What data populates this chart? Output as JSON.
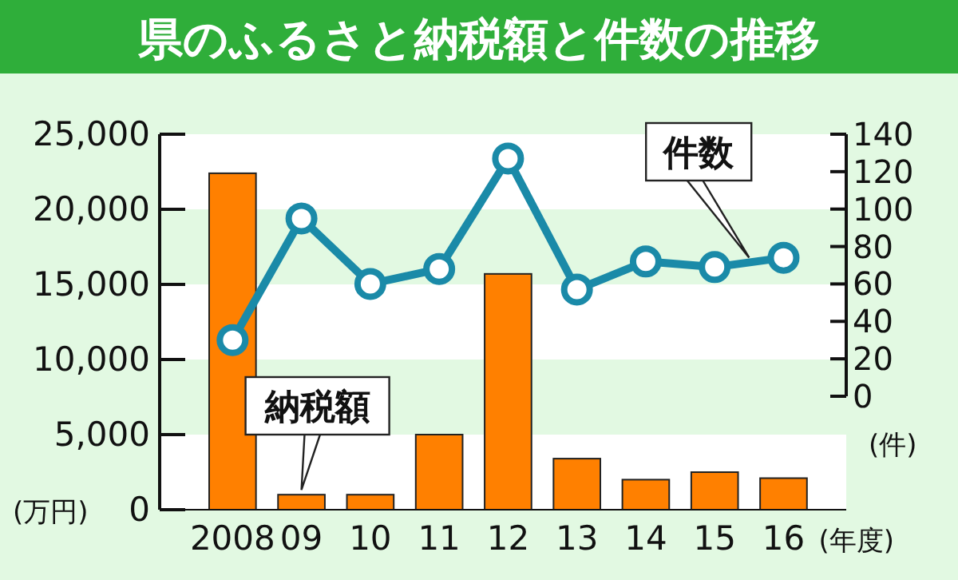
{
  "chart_data": {
    "type": "bar",
    "title": "県のふるさと納税額と件数の推移",
    "xlabel": "(年度)",
    "ylabel": "(万円)",
    "y2label": "(件)",
    "categories": [
      "2008",
      "09",
      "10",
      "11",
      "12",
      "13",
      "14",
      "15",
      "16"
    ],
    "series": [
      {
        "name": "納税額",
        "color": "#ff8000",
        "values": [
          22400,
          1000,
          1000,
          5000,
          15700,
          3400,
          2000,
          2500,
          2100
        ]
      },
      {
        "name": "件数",
        "type": "line",
        "axis": "y2",
        "color": "#1a8aa8",
        "marker": "circle",
        "values": [
          30,
          95,
          60,
          68,
          127,
          57,
          72,
          69,
          74
        ]
      }
    ],
    "ylim": [
      0,
      25000
    ],
    "yticks": [
      {
        "value": 0,
        "label": "0"
      },
      {
        "value": 5000,
        "label": "5,000"
      },
      {
        "value": 10000,
        "label": "10,000"
      },
      {
        "value": 15000,
        "label": "15,000"
      },
      {
        "value": 20000,
        "label": "20,000"
      },
      {
        "value": 25000,
        "label": "25,000"
      }
    ],
    "y2lim": [
      0,
      140
    ],
    "y2ticks": [
      0,
      20,
      40,
      60,
      80,
      100,
      120,
      140
    ],
    "bands": [
      {
        "axis": "y",
        "from": 5000,
        "to": 10000,
        "color": "#e2f9e2"
      },
      {
        "axis": "y",
        "from": 15000,
        "to": 20000,
        "color": "#e2f9e2"
      }
    ]
  }
}
